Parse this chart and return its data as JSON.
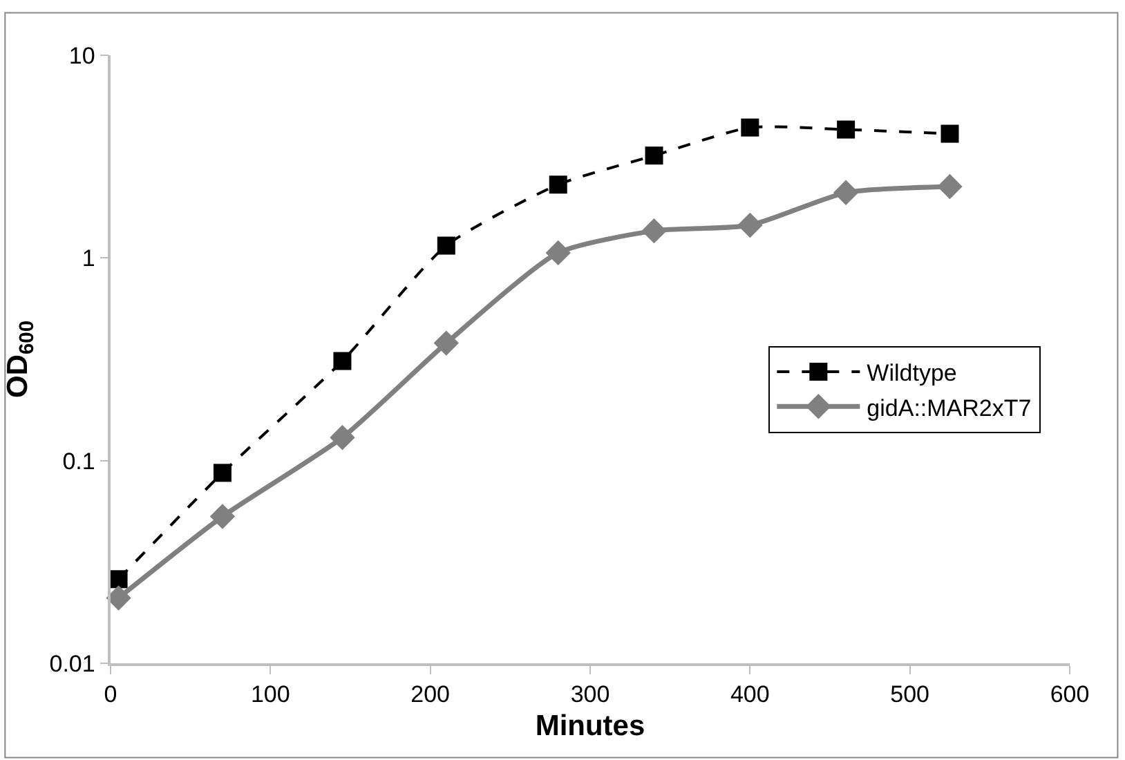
{
  "chart_data": {
    "type": "line",
    "xlabel": "Minutes",
    "ylabel": "OD$_{600}$",
    "log": "y",
    "xlim": [
      0,
      600
    ],
    "xticks": [
      0,
      100,
      200,
      300,
      400,
      500,
      600
    ],
    "ylim": [
      0.01,
      10
    ],
    "yticks": [
      0.01,
      0.1,
      1,
      10
    ],
    "legend": "right",
    "series": [
      {
        "name": "Wildtype",
        "color": "#000000",
        "marker": "square",
        "line_style": "dashed",
        "x": [
          5,
          70,
          145,
          210,
          280,
          340,
          400,
          460,
          525
        ],
        "values": [
          0.026,
          0.087,
          0.31,
          1.15,
          2.3,
          3.2,
          4.4,
          4.3,
          4.1
        ]
      },
      {
        "name": "gidA::MAR2xT7",
        "color": "#808080",
        "marker": "diamond",
        "line_style": "solid",
        "x": [
          5,
          70,
          145,
          210,
          280,
          340,
          400,
          460,
          525
        ],
        "values": [
          0.021,
          0.053,
          0.13,
          0.38,
          1.06,
          1.36,
          1.45,
          2.1,
          2.25
        ]
      }
    ]
  }
}
